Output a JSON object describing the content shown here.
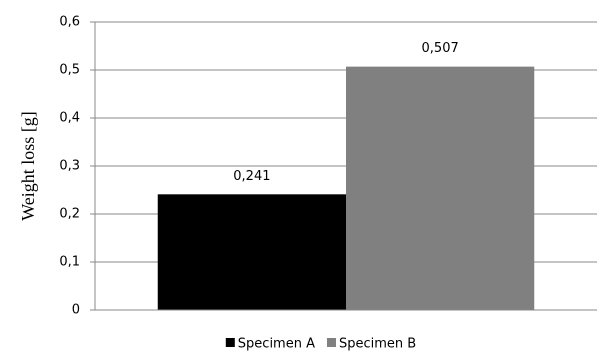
{
  "chart_data": {
    "type": "bar",
    "y_label": "Weight loss [g]",
    "categories": [
      null
    ],
    "series": [
      {
        "name": "Specimen A",
        "color": "#000000",
        "values": [
          0.241
        ],
        "value_labels": [
          "0,241"
        ]
      },
      {
        "name": "Specimen B",
        "color": "#808080",
        "values": [
          0.507
        ],
        "value_labels": [
          "0,507"
        ]
      }
    ],
    "ylim": [
      0,
      0.6
    ],
    "yticks": [
      {
        "value": 0,
        "label": "0"
      },
      {
        "value": 0.1,
        "label": "0,1"
      },
      {
        "value": 0.2,
        "label": "0,2"
      },
      {
        "value": 0.3,
        "label": "0,3"
      },
      {
        "value": 0.4,
        "label": "0,4"
      },
      {
        "value": 0.5,
        "label": "0,5"
      },
      {
        "value": 0.6,
        "label": "0,6"
      }
    ],
    "grid": true,
    "legend": "bottom"
  }
}
